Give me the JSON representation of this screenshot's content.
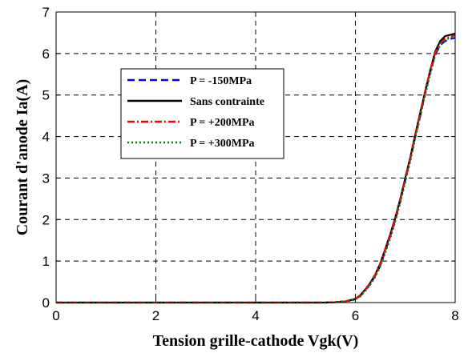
{
  "chart_data": {
    "type": "line",
    "title": "",
    "xlabel": "Tension grille-cathode Vgk(V)",
    "ylabel": "Courant d'anode Ia(A)",
    "xlim": [
      0,
      8
    ],
    "ylim": [
      0,
      7
    ],
    "xticks": [
      "0",
      "2",
      "4",
      "6",
      "8"
    ],
    "yticks": [
      "0",
      "1",
      "2",
      "3",
      "4",
      "5",
      "6",
      "7"
    ],
    "grid": true,
    "legend_position": "upper-left",
    "series": [
      {
        "name": "P = -150MPa",
        "color": "#0000ff",
        "dash": "dashed",
        "x": [
          0,
          2,
          4,
          5.4,
          5.6,
          5.8,
          6.0,
          6.1,
          6.2,
          6.3,
          6.4,
          6.5,
          6.6,
          6.7,
          6.8,
          6.9,
          7.0,
          7.1,
          7.2,
          7.3,
          7.4,
          7.5,
          7.6,
          7.7,
          7.8,
          7.9,
          8.0
        ],
        "y": [
          0,
          0,
          0,
          0.0,
          0.01,
          0.03,
          0.08,
          0.16,
          0.3,
          0.45,
          0.65,
          0.9,
          1.25,
          1.6,
          2.0,
          2.45,
          2.95,
          3.45,
          4.0,
          4.5,
          5.05,
          5.55,
          5.98,
          6.2,
          6.3,
          6.35,
          6.38
        ]
      },
      {
        "name": "Sans contrainte",
        "color": "#000000",
        "dash": "solid",
        "x": [
          0,
          2,
          4,
          5.4,
          5.6,
          5.8,
          6.0,
          6.1,
          6.2,
          6.3,
          6.4,
          6.5,
          6.6,
          6.7,
          6.8,
          6.9,
          7.0,
          7.1,
          7.2,
          7.3,
          7.4,
          7.5,
          7.6,
          7.7,
          7.8,
          7.9,
          8.0
        ],
        "y": [
          0,
          0,
          0,
          0.0,
          0.01,
          0.03,
          0.09,
          0.18,
          0.32,
          0.48,
          0.68,
          0.95,
          1.3,
          1.65,
          2.05,
          2.5,
          3.0,
          3.5,
          4.05,
          4.58,
          5.1,
          5.6,
          6.05,
          6.3,
          6.42,
          6.45,
          6.48
        ]
      },
      {
        "name": "P = +200MPa",
        "color": "#ff0000",
        "dash": "dashdot",
        "x": [
          0,
          2,
          4,
          5.4,
          5.6,
          5.8,
          6.0,
          6.1,
          6.2,
          6.3,
          6.4,
          6.5,
          6.6,
          6.7,
          6.8,
          6.9,
          7.0,
          7.1,
          7.2,
          7.3,
          7.4,
          7.5,
          7.6,
          7.7,
          7.8,
          7.9,
          8.0
        ],
        "y": [
          0,
          0,
          0,
          0.0,
          0.01,
          0.03,
          0.09,
          0.17,
          0.31,
          0.47,
          0.67,
          0.93,
          1.28,
          1.62,
          2.02,
          2.47,
          2.97,
          3.48,
          4.02,
          4.55,
          5.08,
          5.58,
          6.02,
          6.25,
          6.36,
          6.4,
          6.44
        ]
      },
      {
        "name": "P = +300MPa",
        "color": "#008000",
        "dash": "dotted",
        "x": [
          0,
          2,
          4,
          5.4,
          5.6,
          5.8,
          6.0,
          6.1,
          6.2,
          6.3,
          6.4,
          6.5,
          6.6,
          6.7,
          6.8,
          6.9,
          7.0,
          7.1,
          7.2,
          7.3,
          7.4,
          7.5,
          7.6,
          7.7,
          7.8,
          7.9,
          8.0
        ],
        "y": [
          0,
          0,
          0,
          0.0,
          0.01,
          0.02,
          0.07,
          0.15,
          0.28,
          0.43,
          0.62,
          0.87,
          1.2,
          1.55,
          1.95,
          2.4,
          2.9,
          3.4,
          3.95,
          4.48,
          5.0,
          5.5,
          5.95,
          6.2,
          6.32,
          6.38,
          6.42
        ]
      }
    ]
  }
}
